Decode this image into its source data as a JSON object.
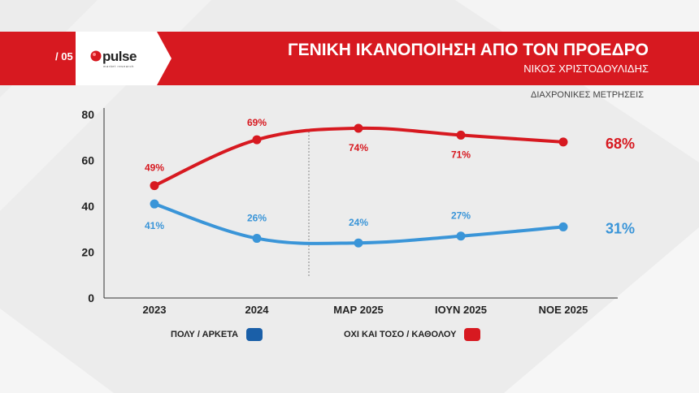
{
  "header": {
    "page_number": "/ 05",
    "logo_text": "pulse",
    "logo_sub": "market research",
    "title": "ΓΕΝΙΚΗ ΙΚΑΝΟΠΟΙΗΣΗ ΑΠΟ ΤΟΝ ΠΡΟΕΔΡΟ",
    "subtitle": "ΝΙΚΟΣ ΧΡΙΣΤΟΔΟΥΛΙΔΗΣ"
  },
  "note": "ΔΙΑΧΡΟΝΙΚΕΣ ΜΕΤΡΗΣΕΙΣ",
  "colors": {
    "red": "#d71920",
    "blue": "#3a95d8",
    "blue_dark": "#1a5fa8",
    "header": "#d71920"
  },
  "chart_data": {
    "type": "line",
    "categories": [
      "2023",
      "2024",
      "ΜΑΡ 2025",
      "ΙΟΥΝ 2025",
      "ΝΟΕ 2025"
    ],
    "ylim": [
      0,
      80
    ],
    "yticks": [
      0,
      20,
      40,
      60,
      80
    ],
    "series": [
      {
        "name": "ΠΟΛΥ / ΑΡΚΕΤΑ",
        "values": [
          41,
          26,
          24,
          27,
          31
        ],
        "labels": [
          "41%",
          "26%",
          "24%",
          "27%",
          "31%"
        ],
        "color": "#3a95d8",
        "legend_color": "#1a5fa8"
      },
      {
        "name": "ΟΧΙ ΚΑΙ ΤΟΣΟ / ΚΑΘΟΛΟΥ",
        "values": [
          49,
          69,
          74,
          71,
          68
        ],
        "labels": [
          "49%",
          "69%",
          "74%",
          "71%",
          "68%"
        ],
        "color": "#d71920",
        "legend_color": "#d71920"
      }
    ]
  }
}
